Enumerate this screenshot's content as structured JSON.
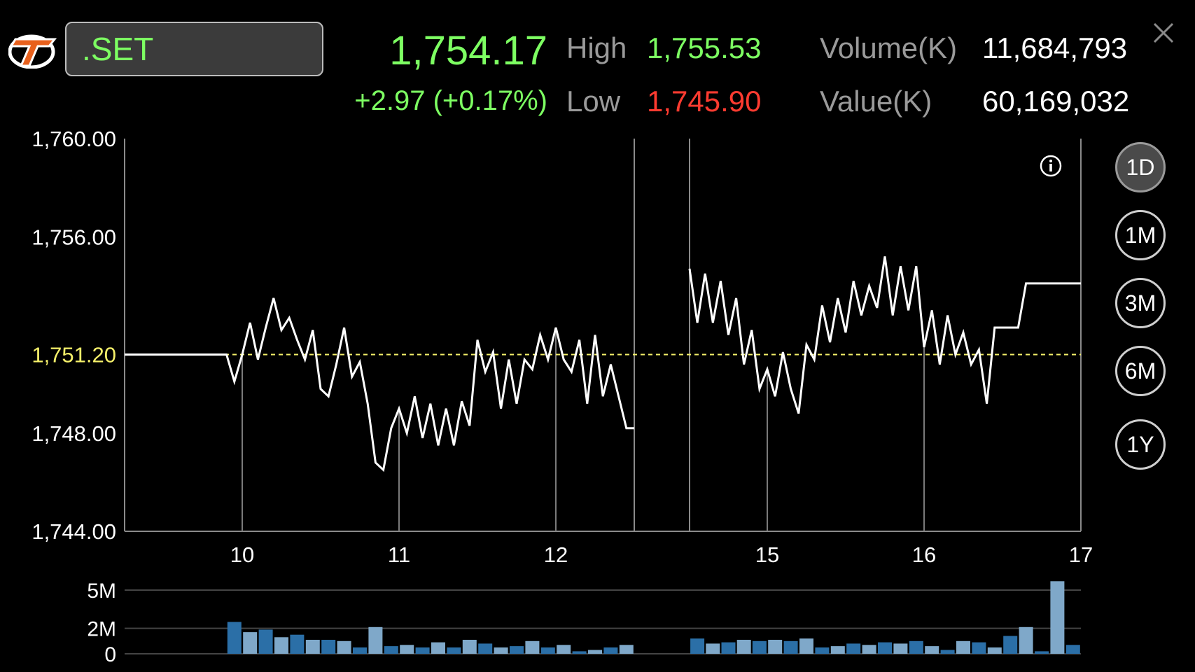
{
  "header": {
    "symbol": ".SET",
    "last_price": "1,754.17",
    "change": "+2.97 (+0.17%)",
    "high_label": "High",
    "high_value": "1,755.53",
    "low_label": "Low",
    "low_value": "1,745.90",
    "volume_label": "Volume(K)",
    "volume_value": "11,684,793",
    "value_label": "Value(K)",
    "value_value": "60,169,032"
  },
  "ranges": [
    {
      "label": "1D",
      "active": true
    },
    {
      "label": "1M",
      "active": false
    },
    {
      "label": "3M",
      "active": false
    },
    {
      "label": "6M",
      "active": false
    },
    {
      "label": "1Y",
      "active": false
    }
  ],
  "colors": {
    "up": "#7dff62",
    "down": "#ff3b30",
    "reference": "#f5f06a",
    "volume_a": "#2b6fa7",
    "volume_b": "#7fa8c9"
  },
  "icons": {
    "logo": "settrade-logo",
    "close": "close-icon",
    "info": "info-icon"
  },
  "chart_data": {
    "type": "line",
    "reference_value": 1751.2,
    "reference_label": "1,751.20",
    "ylim": [
      1744.0,
      1760.0
    ],
    "y_ticks": [
      {
        "value": 1760,
        "label": "1,760.00"
      },
      {
        "value": 1756,
        "label": "1,756.00"
      },
      {
        "value": 1748,
        "label": "1,748.00"
      },
      {
        "value": 1744,
        "label": "1,744.00"
      }
    ],
    "xlim": [
      9.25,
      17
    ],
    "x_ticks": [
      {
        "value": 10,
        "label": "10"
      },
      {
        "value": 11,
        "label": "11"
      },
      {
        "value": 12,
        "label": "12"
      },
      {
        "value": 15,
        "label": "15"
      },
      {
        "value": 16,
        "label": "16"
      },
      {
        "value": 17,
        "label": "17"
      }
    ],
    "morning_session": [
      [
        9.25,
        1751.2
      ],
      [
        9.9,
        1751.2
      ],
      [
        9.95,
        1750.1
      ],
      [
        10.0,
        1751.2
      ],
      [
        10.05,
        1752.5
      ],
      [
        10.1,
        1751.0
      ],
      [
        10.15,
        1752.3
      ],
      [
        10.2,
        1753.5
      ],
      [
        10.25,
        1752.2
      ],
      [
        10.3,
        1752.7
      ],
      [
        10.35,
        1751.8
      ],
      [
        10.4,
        1751.0
      ],
      [
        10.45,
        1752.2
      ],
      [
        10.5,
        1749.8
      ],
      [
        10.55,
        1749.5
      ],
      [
        10.6,
        1750.8
      ],
      [
        10.65,
        1752.3
      ],
      [
        10.7,
        1750.3
      ],
      [
        10.75,
        1750.9
      ],
      [
        10.8,
        1749.2
      ],
      [
        10.85,
        1746.8
      ],
      [
        10.9,
        1746.5
      ],
      [
        10.95,
        1748.2
      ],
      [
        11.0,
        1749.0
      ],
      [
        11.05,
        1748.0
      ],
      [
        11.1,
        1749.5
      ],
      [
        11.15,
        1747.8
      ],
      [
        11.2,
        1749.2
      ],
      [
        11.25,
        1747.5
      ],
      [
        11.3,
        1749.0
      ],
      [
        11.35,
        1747.5
      ],
      [
        11.4,
        1749.3
      ],
      [
        11.45,
        1748.3
      ],
      [
        11.5,
        1751.8
      ],
      [
        11.55,
        1750.5
      ],
      [
        11.6,
        1751.3
      ],
      [
        11.65,
        1749.0
      ],
      [
        11.7,
        1751.0
      ],
      [
        11.75,
        1749.2
      ],
      [
        11.8,
        1751.0
      ],
      [
        11.85,
        1750.6
      ],
      [
        11.9,
        1752.0
      ],
      [
        11.95,
        1751.0
      ],
      [
        12.0,
        1752.3
      ],
      [
        12.05,
        1751.0
      ],
      [
        12.1,
        1750.5
      ],
      [
        12.15,
        1751.8
      ],
      [
        12.2,
        1749.2
      ],
      [
        12.25,
        1752.0
      ],
      [
        12.3,
        1749.5
      ],
      [
        12.35,
        1750.8
      ],
      [
        12.4,
        1749.5
      ],
      [
        12.45,
        1748.2
      ],
      [
        12.5,
        1748.2
      ]
    ],
    "afternoon_session": [
      [
        14.5,
        1754.7
      ],
      [
        14.55,
        1752.5
      ],
      [
        14.6,
        1754.5
      ],
      [
        14.65,
        1752.5
      ],
      [
        14.7,
        1754.2
      ],
      [
        14.75,
        1752.0
      ],
      [
        14.8,
        1753.5
      ],
      [
        14.85,
        1750.8
      ],
      [
        14.9,
        1752.2
      ],
      [
        14.95,
        1749.8
      ],
      [
        15.0,
        1750.6
      ],
      [
        15.05,
        1749.5
      ],
      [
        15.1,
        1751.3
      ],
      [
        15.15,
        1749.8
      ],
      [
        15.2,
        1748.8
      ],
      [
        15.25,
        1751.6
      ],
      [
        15.3,
        1751.0
      ],
      [
        15.35,
        1753.2
      ],
      [
        15.4,
        1751.7
      ],
      [
        15.45,
        1753.5
      ],
      [
        15.5,
        1752.1
      ],
      [
        15.55,
        1754.2
      ],
      [
        15.6,
        1752.8
      ],
      [
        15.65,
        1754.0
      ],
      [
        15.7,
        1753.1
      ],
      [
        15.75,
        1755.2
      ],
      [
        15.8,
        1752.8
      ],
      [
        15.85,
        1754.8
      ],
      [
        15.9,
        1753.0
      ],
      [
        15.95,
        1754.8
      ],
      [
        16.0,
        1751.5
      ],
      [
        16.05,
        1753.0
      ],
      [
        16.1,
        1750.8
      ],
      [
        16.15,
        1752.8
      ],
      [
        16.2,
        1751.2
      ],
      [
        16.25,
        1752.1
      ],
      [
        16.3,
        1750.8
      ],
      [
        16.35,
        1751.4
      ],
      [
        16.4,
        1749.2
      ],
      [
        16.45,
        1752.3
      ],
      [
        16.55,
        1752.3
      ],
      [
        16.6,
        1752.3
      ],
      [
        16.65,
        1754.1
      ],
      [
        17.0,
        1754.1
      ]
    ],
    "volume": {
      "y_ticks": [
        {
          "value": 0,
          "label": "0"
        },
        {
          "value": 2,
          "label": "2M"
        },
        {
          "value": 5,
          "label": "5M"
        }
      ],
      "ylim": [
        0,
        5
      ],
      "bars": [
        [
          9.95,
          2.5
        ],
        [
          10.05,
          1.7
        ],
        [
          10.15,
          1.9
        ],
        [
          10.25,
          1.3
        ],
        [
          10.35,
          1.5
        ],
        [
          10.45,
          1.1
        ],
        [
          10.55,
          1.1
        ],
        [
          10.65,
          1.0
        ],
        [
          10.75,
          0.5
        ],
        [
          10.85,
          2.1
        ],
        [
          10.95,
          0.6
        ],
        [
          11.05,
          0.7
        ],
        [
          11.15,
          0.5
        ],
        [
          11.25,
          0.9
        ],
        [
          11.35,
          0.5
        ],
        [
          11.45,
          1.1
        ],
        [
          11.55,
          0.8
        ],
        [
          11.65,
          0.5
        ],
        [
          11.75,
          0.6
        ],
        [
          11.85,
          1.0
        ],
        [
          11.95,
          0.5
        ],
        [
          12.05,
          0.7
        ],
        [
          12.15,
          0.2
        ],
        [
          12.25,
          0.3
        ],
        [
          12.35,
          0.5
        ],
        [
          12.45,
          0.7
        ],
        [
          14.55,
          1.2
        ],
        [
          14.65,
          0.8
        ],
        [
          14.75,
          0.9
        ],
        [
          14.85,
          1.1
        ],
        [
          14.95,
          1.0
        ],
        [
          15.05,
          1.1
        ],
        [
          15.15,
          1.0
        ],
        [
          15.25,
          1.2
        ],
        [
          15.35,
          0.5
        ],
        [
          15.45,
          0.6
        ],
        [
          15.55,
          0.8
        ],
        [
          15.65,
          0.7
        ],
        [
          15.75,
          0.9
        ],
        [
          15.85,
          0.8
        ],
        [
          15.95,
          1.0
        ],
        [
          16.05,
          0.6
        ],
        [
          16.15,
          0.3
        ],
        [
          16.25,
          1.0
        ],
        [
          16.35,
          0.9
        ],
        [
          16.45,
          0.5
        ],
        [
          16.55,
          1.4
        ],
        [
          16.65,
          2.1
        ],
        [
          16.75,
          0.2
        ],
        [
          16.85,
          5.7
        ],
        [
          16.95,
          0.7
        ]
      ]
    }
  }
}
